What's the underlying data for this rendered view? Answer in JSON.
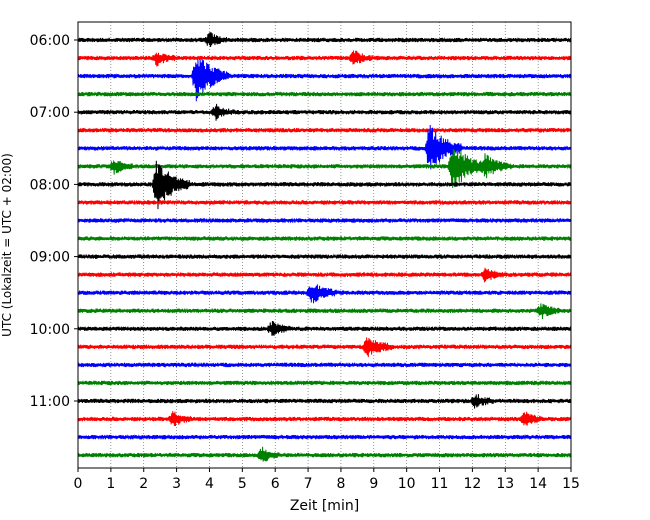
{
  "chart_data": {
    "type": "line",
    "subtype": "helicorder",
    "xlabel": "Zeit  [min]",
    "ylabel": "UTC (Lokalzeit = UTC + 02:00)",
    "xlim": [
      0,
      15
    ],
    "x_ticks": [
      "0",
      "1",
      "2",
      "3",
      "4",
      "5",
      "6",
      "7",
      "8",
      "9",
      "10",
      "11",
      "12",
      "13",
      "14",
      "15"
    ],
    "y_ticks": [
      "06:00",
      "07:00",
      "08:00",
      "09:00",
      "10:00",
      "11:00"
    ],
    "grid": "vertical dotted lines at each minute",
    "trace_interval_minutes": 15,
    "start_time": "06:00",
    "trace_colors": [
      "#000000",
      "#ff0000",
      "#0000ff",
      "#008000"
    ],
    "rows": [
      {
        "time": "06:00",
        "color": "black",
        "events": [
          {
            "minute": 4.0,
            "amplitude": "small"
          }
        ]
      },
      {
        "time": "06:15",
        "color": "red",
        "events": [
          {
            "minute": 2.4,
            "amplitude": "small"
          },
          {
            "minute": 8.4,
            "amplitude": "small"
          }
        ]
      },
      {
        "time": "06:30",
        "color": "blue",
        "events": [
          {
            "minute": 3.6,
            "amplitude": "large"
          }
        ]
      },
      {
        "time": "06:45",
        "color": "green",
        "events": []
      },
      {
        "time": "07:00",
        "color": "black",
        "events": [
          {
            "minute": 4.2,
            "amplitude": "small"
          }
        ]
      },
      {
        "time": "07:15",
        "color": "red",
        "events": []
      },
      {
        "time": "07:30",
        "color": "blue",
        "events": [
          {
            "minute": 10.7,
            "amplitude": "large"
          }
        ]
      },
      {
        "time": "07:45",
        "color": "green",
        "events": [
          {
            "minute": 1.1,
            "amplitude": "small"
          },
          {
            "minute": 11.4,
            "amplitude": "large"
          },
          {
            "minute": 12.4,
            "amplitude": "medium"
          }
        ]
      },
      {
        "time": "08:00",
        "color": "black",
        "events": [
          {
            "minute": 2.4,
            "amplitude": "large"
          }
        ]
      },
      {
        "time": "08:15",
        "color": "red",
        "events": []
      },
      {
        "time": "08:30",
        "color": "blue",
        "events": []
      },
      {
        "time": "08:45",
        "color": "green",
        "events": []
      },
      {
        "time": "09:00",
        "color": "black",
        "events": []
      },
      {
        "time": "09:15",
        "color": "red",
        "events": [
          {
            "minute": 12.4,
            "amplitude": "small"
          }
        ]
      },
      {
        "time": "09:30",
        "color": "blue",
        "events": [
          {
            "minute": 7.1,
            "amplitude": "medium"
          }
        ]
      },
      {
        "time": "09:45",
        "color": "green",
        "events": [
          {
            "minute": 14.1,
            "amplitude": "small"
          }
        ]
      },
      {
        "time": "10:00",
        "color": "black",
        "events": [
          {
            "minute": 5.9,
            "amplitude": "small"
          }
        ]
      },
      {
        "time": "10:15",
        "color": "red",
        "events": [
          {
            "minute": 8.8,
            "amplitude": "medium"
          }
        ]
      },
      {
        "time": "10:30",
        "color": "blue",
        "events": []
      },
      {
        "time": "10:45",
        "color": "green",
        "events": []
      },
      {
        "time": "11:00",
        "color": "black",
        "events": [
          {
            "minute": 12.1,
            "amplitude": "small"
          }
        ]
      },
      {
        "time": "11:15",
        "color": "red",
        "events": [
          {
            "minute": 2.9,
            "amplitude": "small"
          },
          {
            "minute": 13.6,
            "amplitude": "small"
          }
        ]
      },
      {
        "time": "11:30",
        "color": "blue",
        "events": []
      },
      {
        "time": "11:45",
        "color": "green",
        "events": [
          {
            "minute": 5.6,
            "amplitude": "small"
          }
        ]
      }
    ]
  }
}
